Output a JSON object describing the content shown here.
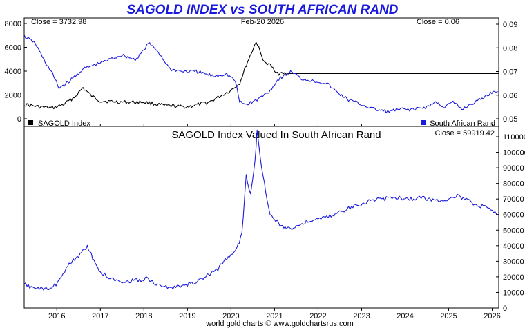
{
  "header": {
    "title": "SAGOLD INDEX vs SOUTH AFRICAN RAND",
    "date": "Feb-20  2026",
    "footer": "world gold charts © www.goldchartsrus.com"
  },
  "colors": {
    "gold_index": "#000000",
    "rand": "#1a1adc",
    "title": "#1a1adc"
  },
  "chart_data": [
    {
      "type": "line",
      "panel": "top",
      "close_left": "Close = 3732.98",
      "close_right": "Close = 0.06",
      "legend": {
        "placement": "bottom",
        "left_label": "SAGOLD Index",
        "right_label": "South African Rand"
      },
      "x_ticks": [
        "2016",
        "2017",
        "2018",
        "2019",
        "2020",
        "2021",
        "2022",
        "2023",
        "2024",
        "2025",
        "2026"
      ],
      "y_left": {
        "ticks": [
          "0",
          "2000",
          "4000",
          "6000",
          "8000"
        ],
        "range": [
          0,
          8000
        ]
      },
      "y_right": {
        "ticks": [
          "0.05",
          "0.06",
          "0.07",
          "0.08",
          "0.09"
        ],
        "range": [
          0.05,
          0.09
        ]
      },
      "reference_line": {
        "value": 3800,
        "axis": "left",
        "from": 2021.3
      },
      "series": [
        {
          "name": "SAGOLD Index",
          "axis": "left",
          "color": "#000000",
          "points": [
            [
              2015.25,
              1200
            ],
            [
              2015.6,
              1000
            ],
            [
              2015.9,
              900
            ],
            [
              2016.15,
              1200
            ],
            [
              2016.4,
              1800
            ],
            [
              2016.6,
              2600
            ],
            [
              2016.8,
              1900
            ],
            [
              2017.0,
              1500
            ],
            [
              2017.5,
              1400
            ],
            [
              2018.0,
              1400
            ],
            [
              2018.5,
              1100
            ],
            [
              2019.0,
              1000
            ],
            [
              2019.5,
              1400
            ],
            [
              2019.8,
              2000
            ],
            [
              2020.0,
              2400
            ],
            [
              2020.2,
              3000
            ],
            [
              2020.35,
              4500
            ],
            [
              2020.5,
              5800
            ],
            [
              2020.58,
              6500
            ],
            [
              2020.7,
              5300
            ],
            [
              2020.8,
              4600
            ],
            [
              2020.9,
              4500
            ],
            [
              2021.0,
              4100
            ],
            [
              2021.1,
              3800
            ],
            [
              2021.3,
              3800
            ]
          ]
        },
        {
          "name": "South African Rand",
          "axis": "right",
          "color": "#1a1adc",
          "points": [
            [
              2015.25,
              0.085
            ],
            [
              2015.5,
              0.082
            ],
            [
              2015.7,
              0.075
            ],
            [
              2015.9,
              0.069
            ],
            [
              2016.05,
              0.063
            ],
            [
              2016.3,
              0.066
            ],
            [
              2016.6,
              0.071
            ],
            [
              2016.9,
              0.073
            ],
            [
              2017.2,
              0.075
            ],
            [
              2017.5,
              0.077
            ],
            [
              2017.8,
              0.075
            ],
            [
              2018.0,
              0.079
            ],
            [
              2018.1,
              0.082
            ],
            [
              2018.3,
              0.079
            ],
            [
              2018.6,
              0.071
            ],
            [
              2018.9,
              0.07
            ],
            [
              2019.2,
              0.07
            ],
            [
              2019.6,
              0.068
            ],
            [
              2019.9,
              0.069
            ],
            [
              2020.1,
              0.066
            ],
            [
              2020.2,
              0.057
            ],
            [
              2020.35,
              0.056
            ],
            [
              2020.6,
              0.058
            ],
            [
              2020.9,
              0.062
            ],
            [
              2021.1,
              0.067
            ],
            [
              2021.4,
              0.07
            ],
            [
              2021.6,
              0.067
            ],
            [
              2021.9,
              0.066
            ],
            [
              2022.2,
              0.065
            ],
            [
              2022.45,
              0.061
            ],
            [
              2022.7,
              0.058
            ],
            [
              2023.0,
              0.056
            ],
            [
              2023.3,
              0.054
            ],
            [
              2023.6,
              0.053
            ],
            [
              2023.9,
              0.054
            ],
            [
              2024.2,
              0.054
            ],
            [
              2024.5,
              0.055
            ],
            [
              2024.7,
              0.057
            ],
            [
              2024.9,
              0.055
            ],
            [
              2025.1,
              0.057
            ],
            [
              2025.3,
              0.054
            ],
            [
              2025.6,
              0.057
            ],
            [
              2025.9,
              0.06
            ],
            [
              2026.05,
              0.062
            ],
            [
              2026.13,
              0.0615
            ]
          ]
        }
      ]
    },
    {
      "type": "line",
      "panel": "bottom",
      "title": "SAGOLD Index Valued In South African Rand",
      "close_right": "Close = 59919.42",
      "x_ticks": [
        "2016",
        "2017",
        "2018",
        "2019",
        "2020",
        "2021",
        "2022",
        "2023",
        "2024",
        "2025",
        "2026"
      ],
      "y_right": {
        "ticks": [
          "0",
          "10000",
          "20000",
          "30000",
          "40000",
          "50000",
          "60000",
          "70000",
          "80000",
          "90000",
          "100000",
          "110000"
        ],
        "range": [
          0,
          115000
        ]
      },
      "series": [
        {
          "name": "SAGOLD Index Valued In South African Rand",
          "axis": "right",
          "color": "#1a1adc",
          "points": [
            [
              2015.25,
              15000
            ],
            [
              2015.6,
              12000
            ],
            [
              2015.85,
              12000
            ],
            [
              2016.05,
              17000
            ],
            [
              2016.25,
              28000
            ],
            [
              2016.5,
              33000
            ],
            [
              2016.7,
              40000
            ],
            [
              2016.85,
              30000
            ],
            [
              2017.0,
              23000
            ],
            [
              2017.3,
              18000
            ],
            [
              2017.6,
              17000
            ],
            [
              2017.9,
              18000
            ],
            [
              2018.1,
              19000
            ],
            [
              2018.35,
              14000
            ],
            [
              2018.7,
              13000
            ],
            [
              2019.0,
              15000
            ],
            [
              2019.3,
              18000
            ],
            [
              2019.7,
              25000
            ],
            [
              2019.9,
              32000
            ],
            [
              2020.1,
              36000
            ],
            [
              2020.25,
              47000
            ],
            [
              2020.35,
              85000
            ],
            [
              2020.45,
              72000
            ],
            [
              2020.55,
              95000
            ],
            [
              2020.6,
              113000
            ],
            [
              2020.7,
              90000
            ],
            [
              2020.8,
              75000
            ],
            [
              2020.9,
              60000
            ],
            [
              2021.0,
              57000
            ],
            [
              2021.15,
              53000
            ],
            [
              2021.4,
              51000
            ],
            [
              2021.7,
              55000
            ],
            [
              2022.0,
              57000
            ],
            [
              2022.3,
              59000
            ],
            [
              2022.6,
              63000
            ],
            [
              2022.9,
              66000
            ],
            [
              2023.2,
              69000
            ],
            [
              2023.5,
              70000
            ],
            [
              2023.8,
              71000
            ],
            [
              2024.1,
              70000
            ],
            [
              2024.4,
              71000
            ],
            [
              2024.7,
              69000
            ],
            [
              2025.0,
              70000
            ],
            [
              2025.2,
              72000
            ],
            [
              2025.5,
              68000
            ],
            [
              2025.8,
              65000
            ],
            [
              2026.13,
              59919
            ]
          ]
        }
      ]
    }
  ]
}
